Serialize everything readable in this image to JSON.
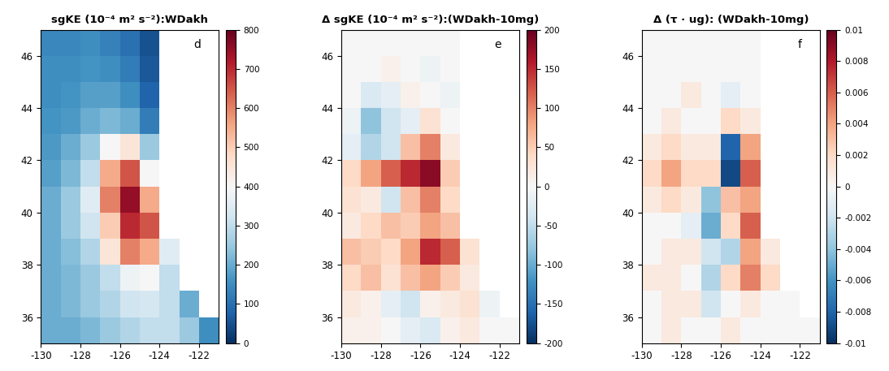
{
  "chart_data": [
    {
      "type": "heatmap",
      "title": "sgKE (10⁻⁴ m² s⁻²):WDakh",
      "annotation": "d",
      "xlim": [
        -130,
        -121
      ],
      "ylim": [
        35,
        47
      ],
      "xticks": [
        -130,
        -128,
        -126,
        -124,
        -122
      ],
      "yticks": [
        36,
        38,
        40,
        42,
        44,
        46
      ],
      "x_bins": [
        -130,
        -129,
        -128,
        -127,
        -126,
        -125,
        -124,
        -123,
        -122,
        -121
      ],
      "y_bins": [
        35,
        36,
        37,
        38,
        39,
        40,
        41,
        42,
        43,
        44,
        45,
        46,
        47
      ],
      "cells": [
        [
          200,
          200,
          220,
          250,
          280,
          300,
          300,
          250,
          150
        ],
        [
          200,
          220,
          250,
          280,
          320,
          330,
          300,
          200,
          null
        ],
        [
          200,
          220,
          250,
          300,
          380,
          400,
          300,
          null,
          null
        ],
        [
          200,
          230,
          280,
          450,
          600,
          550,
          350,
          null,
          null
        ],
        [
          200,
          250,
          320,
          500,
          700,
          650,
          null,
          null,
          null
        ],
        [
          200,
          250,
          350,
          600,
          750,
          550,
          null,
          null,
          null
        ],
        [
          180,
          220,
          300,
          550,
          650,
          400,
          null,
          null,
          null
        ],
        [
          170,
          200,
          250,
          400,
          450,
          250,
          null,
          null,
          null
        ],
        [
          160,
          170,
          200,
          220,
          200,
          120,
          null,
          null,
          null
        ],
        [
          150,
          160,
          180,
          180,
          150,
          80,
          null,
          null,
          null
        ],
        [
          150,
          150,
          160,
          150,
          120,
          60,
          null,
          null,
          null
        ],
        [
          140,
          140,
          150,
          130,
          100,
          50,
          null,
          null,
          null
        ]
      ],
      "colorbar": {
        "range": [
          0,
          800
        ],
        "ticks": [
          0,
          100,
          200,
          300,
          400,
          500,
          600,
          700,
          800
        ]
      }
    },
    {
      "type": "heatmap",
      "title": "Δ sgKE (10⁻⁴ m² s⁻²):(WDakh-10mg)",
      "annotation": "e",
      "xlim": [
        -130,
        -121
      ],
      "ylim": [
        35,
        47
      ],
      "xticks": [
        -130,
        -128,
        -126,
        -124,
        -122
      ],
      "yticks": [
        36,
        38,
        40,
        42,
        44,
        46
      ],
      "x_bins": [
        -130,
        -129,
        -128,
        -127,
        -126,
        -125,
        -124,
        -123,
        -122,
        -121
      ],
      "y_bins": [
        35,
        36,
        37,
        38,
        39,
        40,
        41,
        42,
        43,
        44,
        45,
        46,
        47
      ],
      "cells": [
        [
          10,
          10,
          0,
          -20,
          -30,
          10,
          20,
          0,
          0
        ],
        [
          20,
          10,
          -20,
          -40,
          10,
          20,
          30,
          -10,
          null
        ],
        [
          40,
          60,
          30,
          60,
          80,
          50,
          20,
          null,
          null
        ],
        [
          60,
          50,
          40,
          80,
          150,
          120,
          30,
          null,
          null
        ],
        [
          20,
          40,
          60,
          50,
          80,
          60,
          null,
          null,
          null
        ],
        [
          30,
          20,
          -40,
          60,
          100,
          40,
          null,
          null,
          null
        ],
        [
          40,
          80,
          120,
          150,
          180,
          50,
          null,
          null,
          null
        ],
        [
          -20,
          -60,
          -40,
          60,
          100,
          20,
          null,
          null,
          null
        ],
        [
          -10,
          -80,
          -40,
          -20,
          30,
          0,
          null,
          null,
          null
        ],
        [
          0,
          -30,
          -20,
          10,
          0,
          -10,
          null,
          null,
          null
        ],
        [
          0,
          0,
          10,
          0,
          -10,
          0,
          null,
          null,
          null
        ],
        [
          0,
          0,
          0,
          0,
          0,
          0,
          null,
          null,
          null
        ]
      ],
      "colorbar": {
        "range": [
          -200,
          200
        ],
        "ticks": [
          -200,
          -150,
          -100,
          -50,
          0,
          50,
          100,
          150,
          200
        ]
      }
    },
    {
      "type": "heatmap",
      "title": "Δ (τ · ug): (WDakh-10mg)",
      "annotation": "f",
      "xlim": [
        -130,
        -121
      ],
      "ylim": [
        35,
        47
      ],
      "xticks": [
        -130,
        -128,
        -126,
        -124,
        -122
      ],
      "yticks": [
        36,
        38,
        40,
        42,
        44,
        46
      ],
      "x_bins": [
        -130,
        -129,
        -128,
        -127,
        -126,
        -125,
        -124,
        -123,
        -122,
        -121
      ],
      "y_bins": [
        35,
        36,
        37,
        38,
        39,
        40,
        41,
        42,
        43,
        44,
        45,
        46,
        47
      ],
      "cells": [
        [
          0,
          0.001,
          0,
          0,
          0.001,
          0,
          0,
          0,
          0
        ],
        [
          0,
          0.001,
          0.001,
          -0.002,
          0,
          0.001,
          0,
          0,
          null
        ],
        [
          0.001,
          0.001,
          0,
          -0.003,
          0.002,
          0.005,
          0.002,
          null,
          null
        ],
        [
          0,
          0.001,
          0.001,
          -0.002,
          -0.003,
          0.004,
          0.001,
          null,
          null
        ],
        [
          0,
          0,
          -0.001,
          -0.005,
          0.002,
          0.006,
          null,
          null,
          null
        ],
        [
          0.001,
          0.002,
          0.001,
          -0.004,
          0.003,
          0.004,
          null,
          null,
          null
        ],
        [
          0.002,
          0.004,
          0.002,
          0.002,
          -0.009,
          0.006,
          null,
          null,
          null
        ],
        [
          0.001,
          0.002,
          0.001,
          0.001,
          -0.008,
          0.004,
          null,
          null,
          null
        ],
        [
          0,
          0.001,
          0,
          0,
          0.002,
          0.001,
          null,
          null,
          null
        ],
        [
          0,
          0,
          0.001,
          0,
          -0.001,
          0,
          null,
          null,
          null
        ],
        [
          0,
          0,
          0,
          0,
          0,
          0,
          null,
          null,
          null
        ],
        [
          0,
          0,
          0,
          0,
          0,
          0,
          null,
          null,
          null
        ]
      ],
      "colorbar": {
        "range": [
          -0.01,
          0.01
        ],
        "ticks": [
          -0.01,
          -0.008,
          -0.006,
          -0.004,
          -0.002,
          0,
          0.002,
          0.004,
          0.006,
          0.008,
          0.01
        ]
      }
    }
  ]
}
